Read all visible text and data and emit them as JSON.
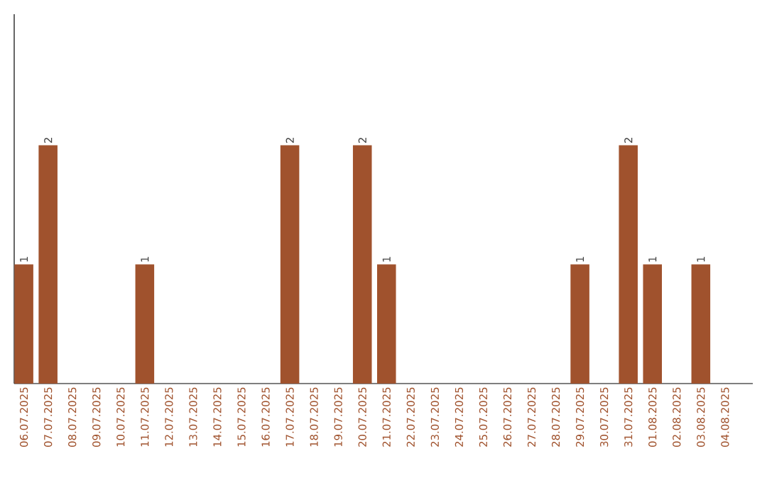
{
  "chart_data": {
    "type": "bar",
    "categories": [
      "06.07.2025",
      "07.07.2025",
      "08.07.2025",
      "09.07.2025",
      "10.07.2025",
      "11.07.2025",
      "12.07.2025",
      "13.07.2025",
      "14.07.2025",
      "15.07.2025",
      "16.07.2025",
      "17.07.2025",
      "18.07.2025",
      "19.07.2025",
      "20.07.2025",
      "21.07.2025",
      "22.07.2025",
      "23.07.2025",
      "24.07.2025",
      "25.07.2025",
      "26.07.2025",
      "27.07.2025",
      "28.07.2025",
      "29.07.2025",
      "30.07.2025",
      "31.07.2025",
      "01.08.2025",
      "02.08.2025",
      "03.08.2025",
      "04.08.2025"
    ],
    "values": [
      1,
      2,
      0,
      0,
      0,
      1,
      0,
      0,
      0,
      0,
      0,
      2,
      0,
      0,
      2,
      1,
      0,
      0,
      0,
      0,
      0,
      0,
      0,
      1,
      0,
      2,
      1,
      0,
      1,
      0
    ],
    "value_labels": [
      "1",
      "2",
      null,
      null,
      null,
      "1",
      null,
      null,
      null,
      null,
      null,
      "2",
      null,
      null,
      "2",
      "1",
      null,
      null,
      null,
      null,
      null,
      null,
      null,
      "1",
      null,
      "2",
      "1",
      null,
      "1",
      null
    ],
    "color": "#a0522d",
    "ylim": [
      0,
      3.1
    ],
    "tick_labels": "x",
    "grid": false
  }
}
